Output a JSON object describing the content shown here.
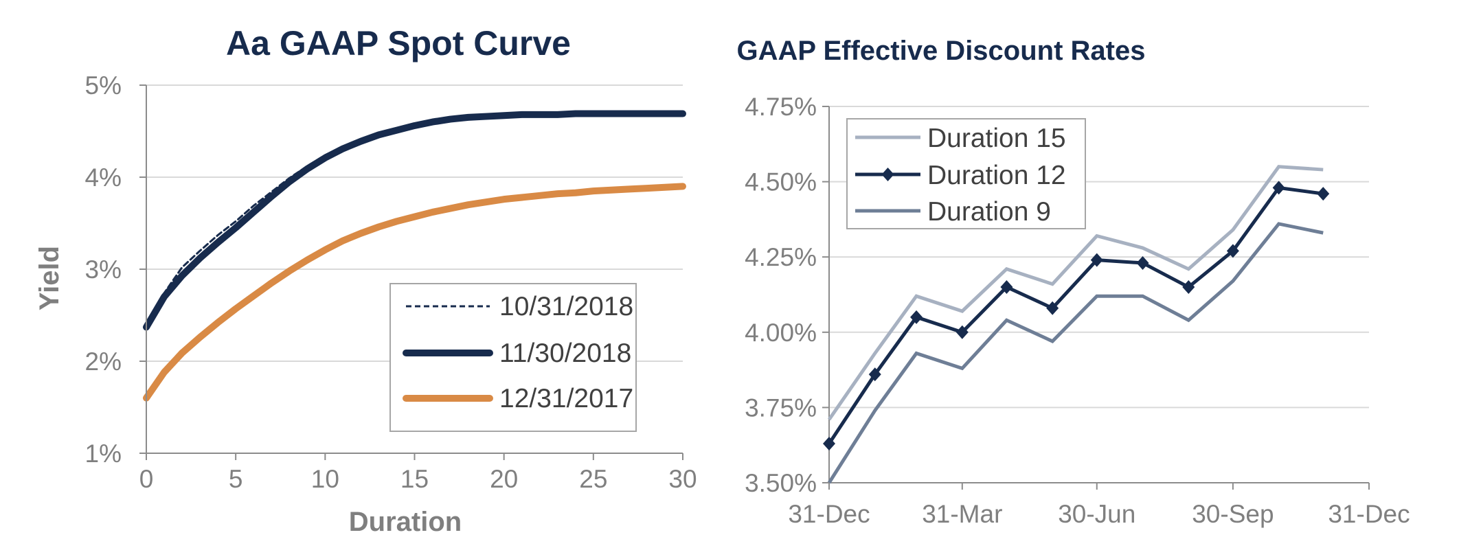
{
  "chart_data": [
    {
      "type": "line",
      "title": "Aa GAAP Spot Curve",
      "xlabel": "Duration",
      "ylabel": "Yield",
      "xlim": [
        0,
        30
      ],
      "ylim": [
        1,
        5
      ],
      "x_ticks": [
        "0",
        "5",
        "10",
        "15",
        "20",
        "25",
        "30"
      ],
      "y_ticks": [
        "1%",
        "2%",
        "3%",
        "4%",
        "5%"
      ],
      "legend_position": "bottom-right",
      "series": [
        {
          "name": "10/31/2018",
          "color": "#172b4d",
          "style": "dashed",
          "x": [
            0,
            1,
            2,
            3,
            4,
            5,
            6,
            7,
            8,
            9,
            10,
            11,
            12,
            13,
            14,
            15,
            16,
            17,
            18,
            19,
            20,
            21,
            22,
            23,
            24,
            25,
            26,
            27,
            28,
            29,
            30
          ],
          "values": [
            2.38,
            2.74,
            3.02,
            3.2,
            3.37,
            3.52,
            3.69,
            3.84,
            3.99,
            4.12,
            4.24,
            4.33,
            4.4,
            4.46,
            4.51,
            4.56,
            4.6,
            4.63,
            4.65,
            4.66,
            4.67,
            4.68,
            4.68,
            4.68,
            4.69,
            4.69,
            4.69,
            4.69,
            4.69,
            4.69,
            4.69
          ]
        },
        {
          "name": "11/30/2018",
          "color": "#172b4d",
          "style": "thick",
          "x": [
            0,
            1,
            2,
            3,
            4,
            5,
            6,
            7,
            8,
            9,
            10,
            11,
            12,
            13,
            14,
            15,
            16,
            17,
            18,
            19,
            20,
            21,
            22,
            23,
            24,
            25,
            26,
            27,
            28,
            29,
            30
          ],
          "values": [
            2.37,
            2.7,
            2.93,
            3.12,
            3.29,
            3.45,
            3.62,
            3.79,
            3.95,
            4.09,
            4.21,
            4.31,
            4.39,
            4.46,
            4.51,
            4.56,
            4.6,
            4.63,
            4.65,
            4.66,
            4.67,
            4.68,
            4.68,
            4.68,
            4.69,
            4.69,
            4.69,
            4.69,
            4.69,
            4.69,
            4.69
          ]
        },
        {
          "name": "12/31/2017",
          "color": "#d98a45",
          "style": "thick",
          "x": [
            0,
            1,
            2,
            3,
            4,
            5,
            6,
            7,
            8,
            9,
            10,
            11,
            12,
            13,
            14,
            15,
            16,
            17,
            18,
            19,
            20,
            21,
            22,
            23,
            24,
            25,
            26,
            27,
            28,
            29,
            30
          ],
          "values": [
            1.6,
            1.88,
            2.09,
            2.26,
            2.42,
            2.57,
            2.71,
            2.85,
            2.98,
            3.1,
            3.21,
            3.31,
            3.39,
            3.46,
            3.52,
            3.57,
            3.62,
            3.66,
            3.7,
            3.73,
            3.76,
            3.78,
            3.8,
            3.82,
            3.83,
            3.85,
            3.86,
            3.87,
            3.88,
            3.89,
            3.9
          ]
        }
      ]
    },
    {
      "type": "line",
      "title": "GAAP Effective Discount Rates",
      "xlabel": "",
      "ylabel": "",
      "x_ticks": [
        "31-Dec",
        "31-Mar",
        "30-Jun",
        "30-Sep",
        "31-Dec"
      ],
      "x_tick_days": [
        0,
        90,
        181,
        273,
        365
      ],
      "xlim": [
        0,
        365
      ],
      "ylim": [
        3.5,
        4.75
      ],
      "y_ticks": [
        "3.50%",
        "3.75%",
        "4.00%",
        "4.25%",
        "4.50%",
        "4.75%"
      ],
      "legend_position": "top-left",
      "x": [
        0,
        31,
        59,
        90,
        120,
        151,
        181,
        212,
        243,
        273,
        304,
        334
      ],
      "series": [
        {
          "name": "Duration 15",
          "color": "#a7b1c1",
          "values": [
            3.71,
            3.93,
            4.12,
            4.07,
            4.21,
            4.16,
            4.32,
            4.28,
            4.21,
            4.34,
            4.55,
            4.54
          ]
        },
        {
          "name": "Duration 12",
          "color": "#172b4d",
          "marker": "diamond",
          "values": [
            3.63,
            3.86,
            4.05,
            4.0,
            4.15,
            4.08,
            4.24,
            4.23,
            4.15,
            4.27,
            4.48,
            4.46
          ]
        },
        {
          "name": "Duration 9",
          "color": "#6e7e96",
          "values": [
            3.5,
            3.74,
            3.93,
            3.88,
            4.04,
            3.97,
            4.12,
            4.12,
            4.04,
            4.17,
            4.36,
            4.33
          ]
        }
      ]
    }
  ]
}
